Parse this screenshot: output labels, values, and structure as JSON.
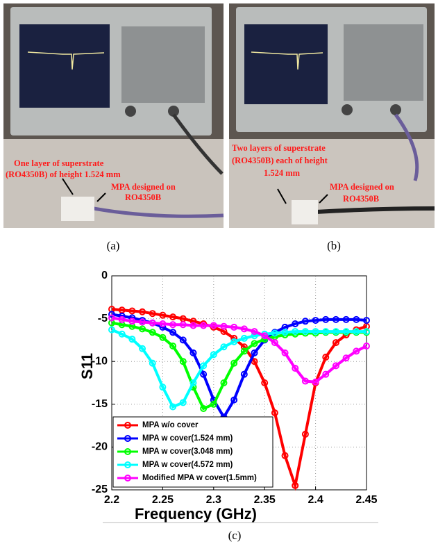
{
  "panels": [
    {
      "caption": "(a)",
      "annotations": [
        "One layer of superstrate",
        "(RO4350B) of height 1.524 mm",
        "MPA designed on",
        "RO4350B"
      ]
    },
    {
      "caption": "(b)",
      "annotations": [
        "Two layers of superstrate",
        "(RO4350B) each of height",
        "1.524 mm",
        "MPA designed on",
        "RO4350B"
      ]
    }
  ],
  "chart_data": {
    "type": "line",
    "caption": "(c)",
    "xlabel": "Frequency (GHz)",
    "ylabel": "S11",
    "x": [
      2.2,
      2.21,
      2.22,
      2.23,
      2.24,
      2.25,
      2.26,
      2.27,
      2.28,
      2.29,
      2.3,
      2.31,
      2.32,
      2.33,
      2.34,
      2.35,
      2.36,
      2.37,
      2.38,
      2.39,
      2.4,
      2.41,
      2.42,
      2.43,
      2.44,
      2.45
    ],
    "series": [
      {
        "name": "MPA w/o cover",
        "color": "#ff0000",
        "values": [
          -3.9,
          -4.0,
          -4.1,
          -4.2,
          -4.4,
          -4.6,
          -4.8,
          -5.0,
          -5.3,
          -5.6,
          -6.0,
          -6.5,
          -7.3,
          -8.3,
          -10.0,
          -12.5,
          -16,
          -21,
          -24.5,
          -18.5,
          -12.5,
          -9.5,
          -7.8,
          -6.9,
          -6.3,
          -5.9
        ]
      },
      {
        "name": "MPA w cover(1.524 mm)",
        "color": "#0000ff",
        "values": [
          -4.5,
          -4.7,
          -4.9,
          -5.2,
          -5.5,
          -6.0,
          -6.6,
          -7.5,
          -9.0,
          -11.5,
          -14.5,
          -16.5,
          -14.5,
          -11.5,
          -9.0,
          -7.5,
          -6.6,
          -6.0,
          -5.6,
          -5.3,
          -5.2,
          -5.1,
          -5.1,
          -5.1,
          -5.1,
          -5.2
        ]
      },
      {
        "name": "MPA w cover(3.048 mm)",
        "color": "#00ff00",
        "values": [
          -5.5,
          -5.7,
          -5.9,
          -6.2,
          -6.6,
          -7.2,
          -8.2,
          -10.0,
          -13.0,
          -15.5,
          -15.0,
          -12.5,
          -10.2,
          -8.8,
          -7.9,
          -7.4,
          -7.1,
          -6.9,
          -6.8,
          -6.7,
          -6.7,
          -6.6,
          -6.6,
          -6.6,
          -6.6,
          -6.6
        ]
      },
      {
        "name": "MPA w cover(4.572 mm)",
        "color": "#00ffff",
        "values": [
          -6.3,
          -6.8,
          -7.4,
          -8.5,
          -10.2,
          -13.0,
          -15.3,
          -14.8,
          -12.5,
          -10.5,
          -9.2,
          -8.3,
          -7.7,
          -7.3,
          -7.0,
          -6.8,
          -6.7,
          -6.6,
          -6.5,
          -6.5,
          -6.5,
          -6.5,
          -6.5,
          -6.5,
          -6.5,
          -6.5
        ]
      },
      {
        "name": "Modified MPA w cover(1.5mm)",
        "color": "#ff00ff",
        "values": [
          -4.9,
          -5.1,
          -5.3,
          -5.4,
          -5.5,
          -5.6,
          -5.7,
          -5.7,
          -5.8,
          -5.8,
          -5.8,
          -5.9,
          -6.0,
          -6.2,
          -6.5,
          -7.0,
          -7.8,
          -9.0,
          -10.8,
          -12.3,
          -12.4,
          -11.5,
          -10.5,
          -9.6,
          -8.8,
          -8.2
        ]
      }
    ],
    "xlim": [
      2.2,
      2.45
    ],
    "xticks": [
      2.2,
      2.25,
      2.3,
      2.35,
      2.4,
      2.45
    ],
    "ylim": [
      -25,
      0
    ],
    "yticks": [
      -25,
      -20,
      -15,
      -10,
      -5,
      0
    ],
    "grid": true,
    "legend": "lower left"
  }
}
